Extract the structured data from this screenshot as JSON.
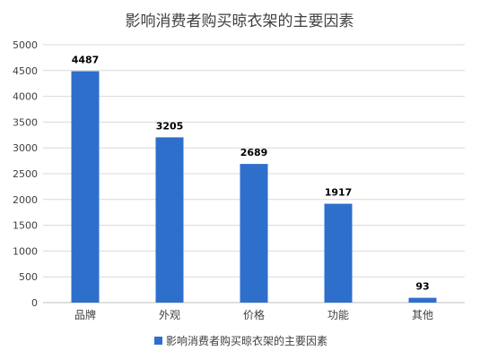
{
  "chart_data": {
    "type": "bar",
    "title": "影响消费者购买晾衣架的主要因素",
    "categories": [
      "品牌",
      "外观",
      "价格",
      "功能",
      "其他"
    ],
    "series": [
      {
        "name": "影响消费者购买晾衣架的主要因素",
        "values": [
          4487,
          3205,
          2689,
          1917,
          93
        ]
      }
    ],
    "data_labels": [
      "4487",
      "3205",
      "2689",
      "1917",
      "93"
    ],
    "ylim": [
      0,
      5000
    ],
    "yticks": [
      0,
      500,
      1000,
      1500,
      2000,
      2500,
      3000,
      3500,
      4000,
      4500,
      5000
    ],
    "grid": true,
    "legend_position": "bottom",
    "colors": {
      "bar": "#2e6fcc",
      "grid": "#d9d9d9",
      "axis": "#bfbfbf",
      "text": "#404040"
    }
  }
}
